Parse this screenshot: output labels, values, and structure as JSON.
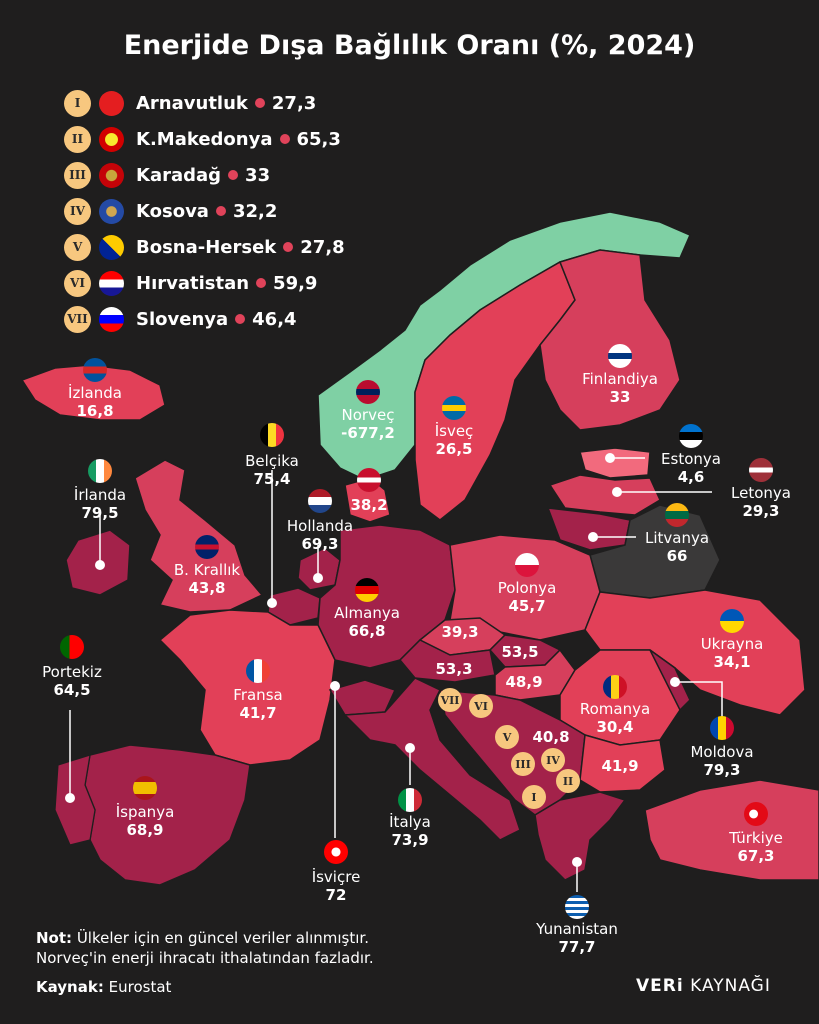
{
  "title": "Enerjide Dışa Bağlılık Oranı (%, 2024)",
  "legend": [
    {
      "roman": "I",
      "name": "Arnavutluk",
      "value": "27,3",
      "icon": "albania-flag-icon"
    },
    {
      "roman": "II",
      "name": "K.Makedonya",
      "value": "65,3",
      "icon": "north-macedonia-flag-icon"
    },
    {
      "roman": "III",
      "name": "Karadağ",
      "value": "33",
      "icon": "montenegro-flag-icon"
    },
    {
      "roman": "IV",
      "name": "Kosova",
      "value": "32,2",
      "icon": "kosovo-flag-icon"
    },
    {
      "roman": "V",
      "name": "Bosna-Hersek",
      "value": "27,8",
      "icon": "bosnia-flag-icon"
    },
    {
      "roman": "VI",
      "name": "Hırvatistan",
      "value": "59,9",
      "icon": "croatia-flag-icon"
    },
    {
      "roman": "VII",
      "name": "Slovenya",
      "value": "46,4",
      "icon": "slovenia-flag-icon"
    }
  ],
  "countries": {
    "izlanda": {
      "name": "İzlanda",
      "value": "16,8"
    },
    "norvec": {
      "name": "Norveç",
      "value": "-677,2"
    },
    "isvec": {
      "name": "İsveç",
      "value": "26,5"
    },
    "finlandiya": {
      "name": "Finlandiya",
      "value": "33"
    },
    "estonya": {
      "name": "Estonya",
      "value": "4,6"
    },
    "letonya": {
      "name": "Letonya",
      "value": "29,3"
    },
    "litvanya": {
      "name": "Litvanya",
      "value": "66"
    },
    "danimarka": {
      "value": "38,2"
    },
    "belcika": {
      "name": "Belçika",
      "value": "75,4"
    },
    "hollanda": {
      "name": "Hollanda",
      "value": "69,3"
    },
    "irlanda": {
      "name": "İrlanda",
      "value": "79,5"
    },
    "bkrallik": {
      "name": "B. Krallık",
      "value": "43,8"
    },
    "almanya": {
      "name": "Almanya",
      "value": "66,8"
    },
    "polonya": {
      "name": "Polonya",
      "value": "45,7"
    },
    "ukrayna": {
      "name": "Ukrayna",
      "value": "34,1"
    },
    "portekiz": {
      "name": "Portekiz",
      "value": "64,5"
    },
    "fransa": {
      "name": "Fransa",
      "value": "41,7"
    },
    "romanya": {
      "name": "Romanya",
      "value": "30,4"
    },
    "moldova": {
      "name": "Moldova",
      "value": "79,3"
    },
    "ispanya": {
      "name": "İspanya",
      "value": "68,9"
    },
    "italya": {
      "name": "İtalya",
      "value": "73,9"
    },
    "isvicre": {
      "name": "İsviçre",
      "value": "72"
    },
    "yunanistan": {
      "name": "Yunanistan",
      "value": "77,7"
    },
    "turkiye": {
      "name": "Türkiye",
      "value": "67,3"
    },
    "cekya": {
      "value": "39,3"
    },
    "avusturya": {
      "value": "53,3"
    },
    "slovakya": {
      "value": "53,5"
    },
    "macaristan": {
      "value": "48,9"
    },
    "sirbistan": {
      "value": "40,8"
    },
    "bulgaristan": {
      "value": "41,9"
    }
  },
  "note_label": "Not:",
  "note_line1": "Ülkeler için en güncel veriler alınmıştır.",
  "note_line2": "Norveç'in enerji ihracatı ithalatından fazladır.",
  "source_label": "Kaynak:",
  "source": "Eurostat",
  "brand_bold": "VERi",
  "brand_light": "KAYNAĞI",
  "colors": {
    "background": "#1f1e1e",
    "high": "#a3224a",
    "mid": "#d63f5c",
    "low": "#e86378",
    "negative": "#7fd0a4",
    "nodata": "#3a3939",
    "badge": "#f7c77f"
  }
}
